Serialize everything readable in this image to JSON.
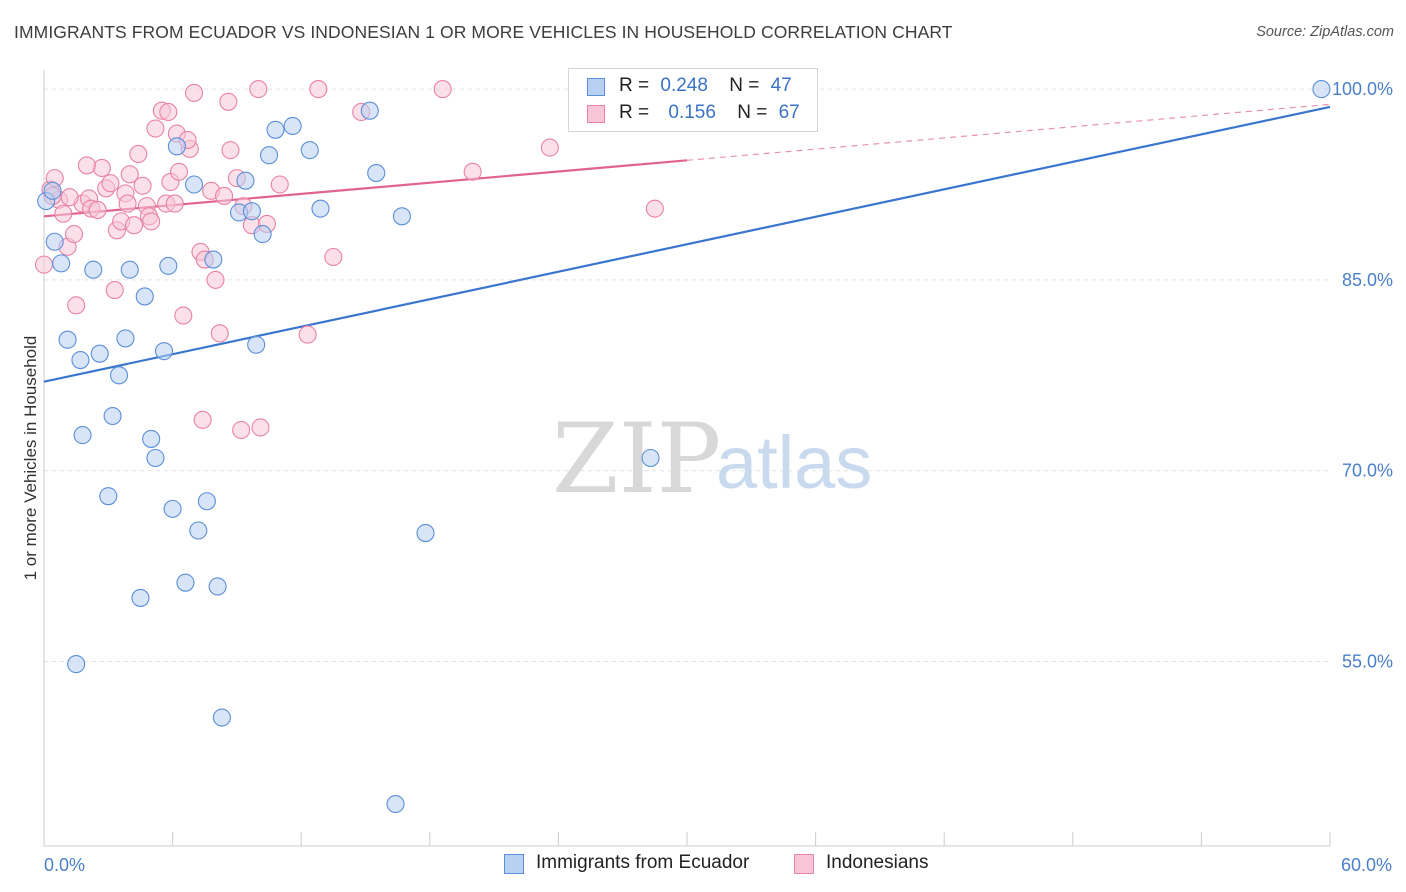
{
  "title": "IMMIGRANTS FROM ECUADOR VS INDONESIAN 1 OR MORE VEHICLES IN HOUSEHOLD CORRELATION CHART",
  "source": "Source: ZipAtlas.com",
  "watermark": {
    "zip": "ZIP",
    "atlas": "atlas"
  },
  "legend": {
    "r_label": "R =",
    "n_label": "N =",
    "series": [
      {
        "name": "Immigrants from Ecuador",
        "r": "0.248",
        "n": "47"
      },
      {
        "name": "Indonesians",
        "r": "0.156",
        "n": "67"
      }
    ]
  },
  "chart_data": {
    "type": "scatter",
    "title": "IMMIGRANTS FROM ECUADOR VS INDONESIAN 1 OR MORE VEHICLES IN HOUSEHOLD CORRELATION CHART",
    "xlabel": "",
    "ylabel": "1 or more Vehicles in Household",
    "xlim": [
      0,
      60
    ],
    "ylim": [
      40.5,
      101.5
    ],
    "x_tick_labels": [
      {
        "value": 0,
        "label": "0.0%"
      },
      {
        "value": 60,
        "label": "60.0%"
      }
    ],
    "y_ticks": [
      {
        "value": 55,
        "label": "55.0%"
      },
      {
        "value": 70,
        "label": "70.0%"
      },
      {
        "value": 85,
        "label": "85.0%"
      },
      {
        "value": 100,
        "label": "100.0%"
      }
    ],
    "x_minor_ticks": [
      6,
      12,
      18,
      24,
      30,
      36,
      42,
      48,
      54,
      60
    ],
    "colors": {
      "blue": "#5b8fd6",
      "blue_fill": "#b8d0f2",
      "blue_line": "#3a76d0",
      "pink": "#e882a6",
      "pink_fill": "#f8c6d7",
      "pink_line": "#e0648f"
    },
    "series": [
      {
        "name": "Immigrants from Ecuador",
        "r": 0.248,
        "n": 47,
        "trend": {
          "x0": 0,
          "y0": 77.0,
          "x1": 60,
          "y1": 98.6,
          "solid_until": 60
        },
        "points": [
          [
            0.1,
            91.2
          ],
          [
            0.4,
            92.0
          ],
          [
            0.5,
            88.0
          ],
          [
            0.8,
            86.3
          ],
          [
            1.1,
            80.3
          ],
          [
            1.7,
            78.7
          ],
          [
            1.8,
            72.8
          ],
          [
            2.3,
            85.8
          ],
          [
            2.6,
            79.2
          ],
          [
            3.0,
            68.0
          ],
          [
            3.2,
            74.3
          ],
          [
            3.5,
            77.5
          ],
          [
            3.8,
            80.4
          ],
          [
            4.0,
            85.8
          ],
          [
            4.5,
            60.0
          ],
          [
            4.7,
            83.7
          ],
          [
            5.0,
            72.5
          ],
          [
            5.2,
            71.0
          ],
          [
            5.6,
            79.4
          ],
          [
            5.8,
            86.1
          ],
          [
            6.0,
            67.0
          ],
          [
            6.2,
            95.5
          ],
          [
            6.6,
            61.2
          ],
          [
            7.0,
            92.5
          ],
          [
            7.2,
            65.3
          ],
          [
            7.6,
            67.6
          ],
          [
            7.9,
            86.6
          ],
          [
            8.1,
            60.9
          ],
          [
            8.3,
            50.6
          ],
          [
            9.1,
            90.3
          ],
          [
            9.4,
            92.8
          ],
          [
            9.7,
            90.4
          ],
          [
            9.9,
            79.9
          ],
          [
            10.2,
            88.6
          ],
          [
            10.5,
            94.8
          ],
          [
            10.8,
            96.8
          ],
          [
            11.6,
            97.1
          ],
          [
            12.4,
            95.2
          ],
          [
            12.9,
            90.6
          ],
          [
            15.2,
            98.3
          ],
          [
            15.5,
            93.4
          ],
          [
            16.4,
            43.8
          ],
          [
            16.7,
            90.0
          ],
          [
            17.8,
            65.1
          ],
          [
            28.3,
            71.0
          ],
          [
            59.6,
            100.0
          ],
          [
            1.5,
            54.8
          ]
        ]
      },
      {
        "name": "Indonesians",
        "r": 0.156,
        "n": 67,
        "trend": {
          "x0": 0,
          "y0": 90.0,
          "x1": 60,
          "y1": 98.8,
          "solid_until": 30
        },
        "points": [
          [
            0.0,
            86.2
          ],
          [
            0.3,
            92.1
          ],
          [
            0.5,
            93.0
          ],
          [
            0.7,
            91.3
          ],
          [
            0.9,
            90.2
          ],
          [
            1.1,
            87.6
          ],
          [
            1.4,
            88.6
          ],
          [
            1.5,
            83.0
          ],
          [
            1.8,
            91.0
          ],
          [
            2.1,
            91.4
          ],
          [
            2.2,
            90.6
          ],
          [
            2.5,
            90.5
          ],
          [
            2.7,
            93.8
          ],
          [
            2.9,
            92.2
          ],
          [
            3.1,
            92.6
          ],
          [
            3.3,
            84.2
          ],
          [
            3.4,
            88.9
          ],
          [
            3.6,
            89.6
          ],
          [
            3.8,
            91.8
          ],
          [
            4.0,
            93.3
          ],
          [
            4.2,
            89.3
          ],
          [
            4.4,
            94.9
          ],
          [
            4.6,
            92.4
          ],
          [
            4.8,
            90.8
          ],
          [
            4.9,
            90.0
          ],
          [
            5.0,
            89.6
          ],
          [
            5.2,
            96.9
          ],
          [
            5.5,
            98.3
          ],
          [
            5.7,
            91.0
          ],
          [
            5.9,
            92.7
          ],
          [
            6.1,
            91.0
          ],
          [
            6.3,
            93.5
          ],
          [
            6.5,
            82.2
          ],
          [
            6.8,
            95.3
          ],
          [
            7.0,
            99.7
          ],
          [
            7.3,
            87.2
          ],
          [
            7.5,
            86.6
          ],
          [
            7.8,
            92.0
          ],
          [
            8.0,
            85.0
          ],
          [
            8.2,
            80.8
          ],
          [
            8.4,
            91.6
          ],
          [
            8.7,
            95.2
          ],
          [
            9.0,
            93.0
          ],
          [
            9.3,
            90.8
          ],
          [
            9.7,
            89.3
          ],
          [
            10.1,
            73.4
          ],
          [
            10.4,
            89.4
          ],
          [
            11.0,
            92.5
          ],
          [
            12.3,
            80.7
          ],
          [
            12.8,
            100.0
          ],
          [
            13.5,
            86.8
          ],
          [
            14.8,
            98.2
          ],
          [
            18.6,
            100.0
          ],
          [
            20.0,
            93.5
          ],
          [
            23.6,
            95.4
          ],
          [
            28.5,
            90.6
          ],
          [
            6.2,
            96.5
          ],
          [
            7.4,
            74.0
          ],
          [
            9.2,
            73.2
          ],
          [
            10.0,
            100.0
          ],
          [
            8.6,
            99.0
          ],
          [
            3.9,
            91.0
          ],
          [
            2.0,
            94.0
          ],
          [
            1.2,
            91.5
          ],
          [
            5.8,
            98.2
          ],
          [
            0.4,
            91.6
          ],
          [
            6.7,
            96.0
          ]
        ]
      }
    ]
  }
}
